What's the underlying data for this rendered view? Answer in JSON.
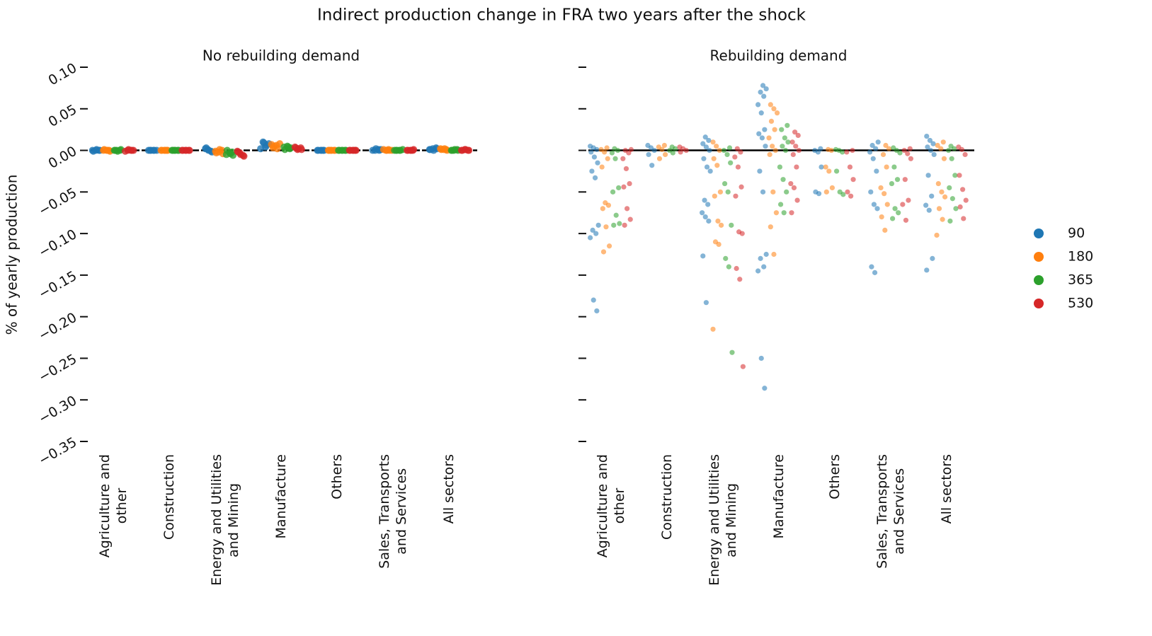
{
  "title": "Indirect production change in FRA two years after the shock",
  "chart_data": [
    {
      "type": "strip",
      "subtitle": "No rebuilding demand",
      "ylabel": "% of yearly production",
      "categories": [
        "Agriculture and\nother",
        "Construction",
        "Energy and Utilities\nand Mining",
        "Manufacture",
        "Others",
        "Sales, Transports\nand Services",
        "All sectors"
      ],
      "ylim": [
        -0.35,
        0.1
      ],
      "yticks": [
        {
          "value": -0.35,
          "label": "−0.35"
        },
        {
          "value": -0.3,
          "label": "−0.30"
        },
        {
          "value": -0.25,
          "label": "−0.25"
        },
        {
          "value": -0.2,
          "label": "−0.20"
        },
        {
          "value": -0.15,
          "label": "−0.15"
        },
        {
          "value": -0.1,
          "label": "−0.10"
        },
        {
          "value": -0.05,
          "label": "−0.05"
        },
        {
          "value": 0,
          "label": "0.00"
        },
        {
          "value": 0.05,
          "label": "0.05"
        },
        {
          "value": 0.1,
          "label": "0.10"
        }
      ],
      "series": [
        {
          "color": "#1f77b4",
          "values": [
            [
              0,
              0,
              0,
              -0.001,
              0.001,
              0
            ],
            [
              0,
              0,
              0,
              0,
              0,
              0
            ],
            [
              0.001,
              -0.001,
              0.002,
              0,
              -0.002,
              0.003
            ],
            [
              0.004,
              0.008,
              0.01,
              0.006,
              0.002,
              0.009
            ],
            [
              0,
              0,
              0,
              0,
              0,
              0
            ],
            [
              0.001,
              0,
              0.001,
              0,
              0.002,
              0
            ],
            [
              0.001,
              0.002,
              0.003,
              0.001,
              0,
              0.002
            ]
          ]
        },
        {
          "color": "#ff7f0e",
          "values": [
            [
              0,
              0,
              0,
              -0.001,
              0.001,
              0
            ],
            [
              0,
              0,
              0,
              0,
              0,
              0
            ],
            [
              -0.001,
              -0.002,
              0,
              -0.003,
              0.001,
              -0.004
            ],
            [
              0.003,
              0.006,
              0.008,
              0.005,
              0.002,
              0.007
            ],
            [
              0,
              0,
              0,
              0,
              0,
              0
            ],
            [
              0.001,
              0,
              0,
              0,
              0.001,
              0
            ],
            [
              0.001,
              0.002,
              0.001,
              0,
              0.001,
              0.002
            ]
          ]
        },
        {
          "color": "#2ca02c",
          "values": [
            [
              0,
              0,
              0,
              -0.001,
              0.001,
              0
            ],
            [
              0,
              0,
              0,
              0,
              0,
              0
            ],
            [
              -0.002,
              -0.005,
              -0.003,
              -0.006,
              0,
              -0.004
            ],
            [
              0.002,
              0.004,
              0.005,
              0.003,
              0.001,
              0.004
            ],
            [
              0,
              0,
              0,
              0,
              0,
              0
            ],
            [
              0,
              0,
              0.001,
              0,
              0,
              0
            ],
            [
              0,
              0.001,
              0,
              0.001,
              0,
              0
            ]
          ]
        },
        {
          "color": "#d62728",
          "values": [
            [
              0,
              0,
              0,
              -0.001,
              0.001,
              0
            ],
            [
              0,
              0,
              0,
              0,
              0,
              0
            ],
            [
              -0.003,
              -0.006,
              -0.001,
              -0.005,
              -0.007,
              -0.002
            ],
            [
              0.001,
              0.003,
              0.004,
              0.002,
              0.001,
              0.003
            ],
            [
              0,
              0,
              0,
              0,
              0,
              0
            ],
            [
              0,
              0,
              0,
              0.001,
              0,
              0
            ],
            [
              0,
              0.001,
              0,
              0,
              0.001,
              0
            ]
          ]
        }
      ]
    },
    {
      "type": "strip",
      "subtitle": "Rebuilding demand",
      "legend": "right",
      "categories": [
        "Agriculture and\nother",
        "Construction",
        "Energy and Utilities\nand Mining",
        "Manufacture",
        "Others",
        "Sales, Transports\nand Services",
        "All sectors"
      ],
      "ylim": [
        -0.35,
        0.1
      ],
      "yticks": [
        -0.35,
        -0.3,
        -0.25,
        -0.2,
        -0.15,
        -0.1,
        -0.05,
        0,
        0.05,
        0.1
      ],
      "series": [
        {
          "name": "90",
          "color": "#1f77b4",
          "values": [
            [
              0.005,
              0.003,
              0.001,
              -0.002,
              -0.008,
              -0.015,
              -0.025,
              -0.033,
              -0.09,
              -0.096,
              -0.1,
              -0.105,
              -0.18,
              -0.193
            ],
            [
              0.006,
              0.003,
              0,
              -0.005,
              -0.018
            ],
            [
              0.016,
              0.012,
              0.008,
              0.004,
              0,
              -0.01,
              -0.02,
              -0.025,
              -0.06,
              -0.065,
              -0.075,
              -0.08,
              -0.085,
              -0.127,
              -0.183
            ],
            [
              0.078,
              0.074,
              0.07,
              0.065,
              0.055,
              0.045,
              0.025,
              0.02,
              0.015,
              0.005,
              -0.025,
              -0.05,
              -0.125,
              -0.13,
              -0.14,
              -0.145,
              -0.25,
              -0.286
            ],
            [
              0.002,
              0,
              -0.002,
              -0.02,
              -0.05,
              -0.052
            ],
            [
              0.01,
              0.006,
              0.002,
              -0.002,
              -0.01,
              -0.025,
              -0.05,
              -0.065,
              -0.07,
              -0.14,
              -0.147
            ],
            [
              0.017,
              0.012,
              0.008,
              0.004,
              0,
              -0.005,
              -0.03,
              -0.055,
              -0.066,
              -0.072,
              -0.13,
              -0.144
            ]
          ]
        },
        {
          "name": "180",
          "color": "#ff7f0e",
          "values": [
            [
              0.003,
              0.001,
              -0.002,
              -0.01,
              -0.02,
              -0.063,
              -0.066,
              -0.07,
              -0.092,
              -0.115,
              -0.122
            ],
            [
              0.006,
              0.004,
              0.001,
              -0.005,
              -0.01
            ],
            [
              0.01,
              0.005,
              0,
              -0.01,
              -0.018,
              -0.05,
              -0.055,
              -0.085,
              -0.09,
              -0.11,
              -0.113,
              -0.215
            ],
            [
              0.055,
              0.05,
              0.045,
              0.035,
              0.025,
              0.015,
              0.005,
              0,
              -0.005,
              -0.05,
              -0.075,
              -0.092,
              -0.125
            ],
            [
              0.001,
              0,
              -0.02,
              -0.025,
              -0.045,
              -0.05
            ],
            [
              0.006,
              0.002,
              -0.005,
              -0.02,
              -0.045,
              -0.052,
              -0.065,
              -0.08,
              -0.096
            ],
            [
              0.01,
              0.006,
              0.002,
              -0.01,
              -0.04,
              -0.05,
              -0.056,
              -0.07,
              -0.083,
              -0.102
            ]
          ]
        },
        {
          "name": "365",
          "color": "#2ca02c",
          "values": [
            [
              0.002,
              0,
              -0.003,
              -0.01,
              -0.045,
              -0.05,
              -0.078,
              -0.088,
              -0.09
            ],
            [
              0.004,
              0.002,
              0,
              -0.003
            ],
            [
              0.003,
              0,
              -0.005,
              -0.015,
              -0.04,
              -0.05,
              -0.09,
              -0.13,
              -0.14,
              -0.243
            ],
            [
              0.03,
              0.025,
              0.015,
              0.01,
              0.005,
              0,
              -0.02,
              -0.035,
              -0.05,
              -0.065,
              -0.075
            ],
            [
              0.001,
              0,
              -0.002,
              -0.025,
              -0.05,
              -0.053
            ],
            [
              0.003,
              0,
              -0.003,
              -0.02,
              -0.035,
              -0.04,
              -0.07,
              -0.075,
              -0.082
            ],
            [
              0.005,
              0.002,
              0,
              -0.01,
              -0.03,
              -0.045,
              -0.058,
              -0.07,
              -0.085
            ]
          ]
        },
        {
          "name": "530",
          "color": "#d62728",
          "values": [
            [
              0.001,
              0,
              -0.003,
              -0.01,
              -0.022,
              -0.04,
              -0.044,
              -0.07,
              -0.083,
              -0.09
            ],
            [
              0.004,
              0.002,
              0,
              -0.002
            ],
            [
              0.002,
              -0.002,
              -0.008,
              -0.02,
              -0.044,
              -0.055,
              -0.098,
              -0.1,
              -0.142,
              -0.155,
              -0.26
            ],
            [
              0.022,
              0.018,
              0.01,
              0.005,
              0,
              -0.005,
              -0.02,
              -0.04,
              -0.045,
              -0.06,
              -0.075
            ],
            [
              0,
              -0.002,
              -0.02,
              -0.035,
              -0.05,
              -0.055
            ],
            [
              0.002,
              0,
              -0.004,
              -0.01,
              -0.035,
              -0.06,
              -0.065,
              -0.084
            ],
            [
              0.004,
              0.001,
              -0.005,
              -0.03,
              -0.047,
              -0.06,
              -0.068,
              -0.082
            ]
          ]
        }
      ]
    }
  ]
}
